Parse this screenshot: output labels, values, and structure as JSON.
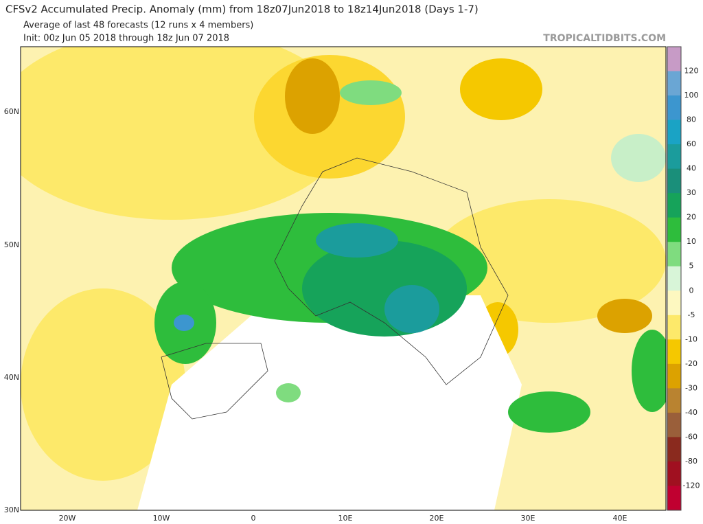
{
  "header": {
    "title": "CFSv2 Accumulated Precip. Anomaly (mm) from 18z07Jun2018 to 18z14Jun2018 (Days 1-7)",
    "subtitle": "Average of last 48 forecasts (12 runs x 4 members)",
    "init": "Init: 00z Jun 05 2018 through 18z Jun 07 2018",
    "watermark": "TROPICALTIDBITS.COM"
  },
  "map": {
    "lat_labels": [
      "60N",
      "50N",
      "40N",
      "30N"
    ],
    "lon_labels": [
      "20W",
      "10W",
      "0",
      "10E",
      "20E",
      "30E",
      "40E"
    ]
  },
  "colorbar": {
    "labels": [
      120,
      100,
      80,
      60,
      40,
      30,
      20,
      10,
      5,
      0,
      -5,
      -10,
      -20,
      -30,
      -40,
      -60,
      -80,
      -120
    ],
    "colors": [
      "#c79bc6",
      "#6aa6d4",
      "#3c96cf",
      "#1aa3c5",
      "#1b9c9c",
      "#1a8f7a",
      "#16a35a",
      "#2ebd3c",
      "#7fdc7f",
      "#d8f5d8",
      "#fdf8c0",
      "#fde96a",
      "#f5c800",
      "#dca200",
      "#b98330",
      "#9a5f3a",
      "#8a2a1e",
      "#a01020",
      "#c00030"
    ]
  }
}
